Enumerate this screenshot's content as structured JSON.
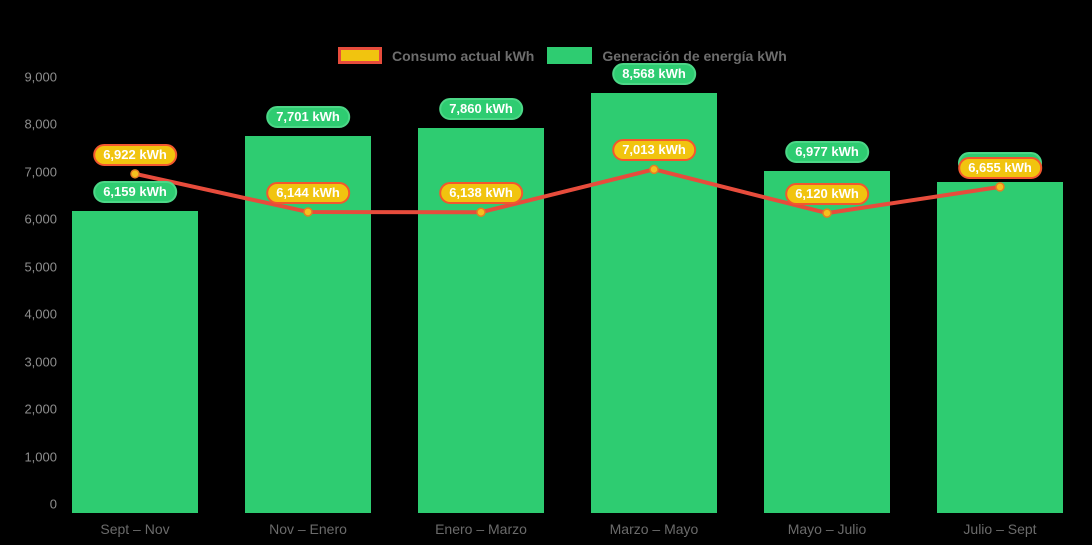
{
  "legend": {
    "consumo_label": "Consumo actual kWh",
    "generacion_label": "Generación de energía kWh"
  },
  "colors": {
    "background": "#000000",
    "bar_green": "#2ecc71",
    "green_pill_border": "#4cd787",
    "line_red": "#e74c3c",
    "pill_yellow_fill": "#f1c40f",
    "pill_orange_border": "#f3572e",
    "dot_fill": "#f5c01e",
    "dot_border": "#e67e22",
    "legend_text": "#6d6d6d",
    "y_axis_text": "#8e8e8e",
    "x_axis_text": "#6b6b6b"
  },
  "chart_data": {
    "type": "bar",
    "subtype": "bar-with-line-overlay",
    "categories": [
      "Sept – Nov",
      "Nov – Enero",
      "Enero – Marzo",
      "Marzo – Mayo",
      "Mayo – Julio",
      "Julio – Sept"
    ],
    "series": [
      {
        "name": "Generación de energía kWh",
        "type": "bar",
        "color": "#2ecc71",
        "values": [
          6159,
          7701,
          7860,
          8568,
          6977,
          6755
        ],
        "labels": [
          "6,159 kWh",
          "7,701 kWh",
          "7,860 kWh",
          "8,568 kWh",
          "6,977 kWh",
          null
        ],
        "note": "last label pill is hidden behind the consumo label pill"
      },
      {
        "name": "Consumo actual kWh",
        "type": "line",
        "color": "#e74c3c",
        "values": [
          6922,
          6144,
          6138,
          7013,
          6120,
          6655
        ],
        "labels": [
          "6,922 kWh",
          "6,144 kWh",
          "6,138 kWh",
          "7,013 kWh",
          "6,120 kWh",
          "6,655 kWh"
        ]
      }
    ],
    "y_ticks": [
      "9,000",
      "8,000",
      "7,000",
      "6,000",
      "5,000",
      "4,000",
      "3,000",
      "2,000",
      "1,000",
      "0"
    ],
    "y_tick_values": [
      9000,
      8000,
      7000,
      6000,
      5000,
      4000,
      3000,
      2000,
      1000,
      0
    ],
    "ylim": [
      0,
      9000
    ],
    "grid": false,
    "legend_position": "top"
  }
}
